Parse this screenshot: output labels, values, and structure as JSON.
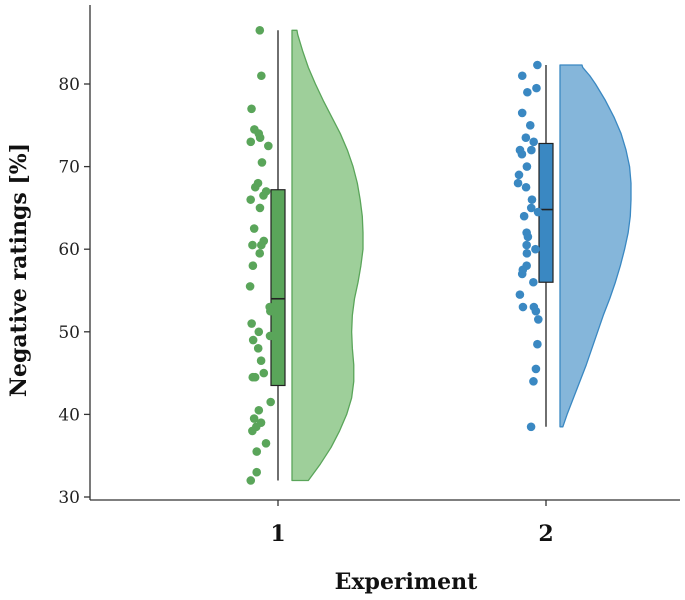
{
  "chart_data": {
    "type": "raincloud",
    "xlabel": "Experiment",
    "ylabel": "Negative ratings [%]",
    "ylim": [
      29,
      89
    ],
    "yticks": [
      30,
      40,
      50,
      60,
      70,
      80
    ],
    "grid": false,
    "legend": "none",
    "categories": [
      "1",
      "2"
    ],
    "series": [
      {
        "category": "1",
        "color": "#5aa55a",
        "fill": "#9ecf9a",
        "edge": "#3f7f3f",
        "box": {
          "min": 32,
          "q1": 43.5,
          "median": 54,
          "q3": 67.2,
          "max": 86.5
        },
        "density": [
          [
            32,
            0.23
          ],
          [
            34,
            0.4
          ],
          [
            36,
            0.55
          ],
          [
            38,
            0.67
          ],
          [
            40,
            0.77
          ],
          [
            42,
            0.84
          ],
          [
            44,
            0.87
          ],
          [
            46,
            0.87
          ],
          [
            48,
            0.85
          ],
          [
            50,
            0.84
          ],
          [
            52,
            0.85
          ],
          [
            54,
            0.88
          ],
          [
            56,
            0.93
          ],
          [
            58,
            0.97
          ],
          [
            60,
            1.0
          ],
          [
            62,
            1.0
          ],
          [
            64,
            0.99
          ],
          [
            66,
            0.96
          ],
          [
            68,
            0.92
          ],
          [
            70,
            0.86
          ],
          [
            72,
            0.78
          ],
          [
            74,
            0.68
          ],
          [
            76,
            0.56
          ],
          [
            78,
            0.44
          ],
          [
            80,
            0.33
          ],
          [
            82,
            0.23
          ],
          [
            84,
            0.15
          ],
          [
            86,
            0.08
          ],
          [
            86.5,
            0.07
          ]
        ],
        "points": [
          86.5,
          81,
          77,
          74.5,
          74,
          73.5,
          73,
          72.5,
          70.5,
          68,
          67.5,
          67,
          66.5,
          66,
          65,
          62.5,
          61,
          60.5,
          60.5,
          59.5,
          58,
          55.5,
          53,
          52.5,
          51,
          50,
          49.5,
          49,
          48,
          46.5,
          45,
          44.5,
          44.5,
          41.5,
          40.5,
          39.5,
          39,
          38.5,
          38,
          36.5,
          35.5,
          33,
          32
        ]
      },
      {
        "category": "2",
        "color": "#3a88c2",
        "fill": "#85b6da",
        "edge": "#3a7fb8",
        "box": {
          "min": 38.5,
          "q1": 56,
          "median": 64.8,
          "q3": 72.8,
          "max": 82.3
        },
        "density": [
          [
            38.5,
            0.04
          ],
          [
            40,
            0.1
          ],
          [
            42,
            0.19
          ],
          [
            44,
            0.28
          ],
          [
            46,
            0.37
          ],
          [
            48,
            0.45
          ],
          [
            50,
            0.53
          ],
          [
            52,
            0.61
          ],
          [
            54,
            0.7
          ],
          [
            56,
            0.78
          ],
          [
            58,
            0.85
          ],
          [
            60,
            0.91
          ],
          [
            62,
            0.96
          ],
          [
            64,
            0.99
          ],
          [
            66,
            1.0
          ],
          [
            68,
            1.0
          ],
          [
            70,
            0.98
          ],
          [
            72,
            0.93
          ],
          [
            74,
            0.86
          ],
          [
            76,
            0.76
          ],
          [
            78,
            0.64
          ],
          [
            80,
            0.5
          ],
          [
            81,
            0.42
          ],
          [
            82,
            0.32
          ],
          [
            82.3,
            0.31
          ]
        ],
        "points": [
          82.3,
          81,
          79.5,
          79,
          76.5,
          75,
          73.5,
          73,
          72,
          72,
          71.5,
          70,
          69,
          68,
          67.5,
          66,
          65,
          64.5,
          64,
          62,
          61.5,
          60.5,
          60,
          59.5,
          58,
          57.5,
          57,
          56,
          54.5,
          53,
          53,
          52.5,
          51.5,
          48.5,
          45.5,
          44,
          38.5
        ]
      }
    ]
  }
}
